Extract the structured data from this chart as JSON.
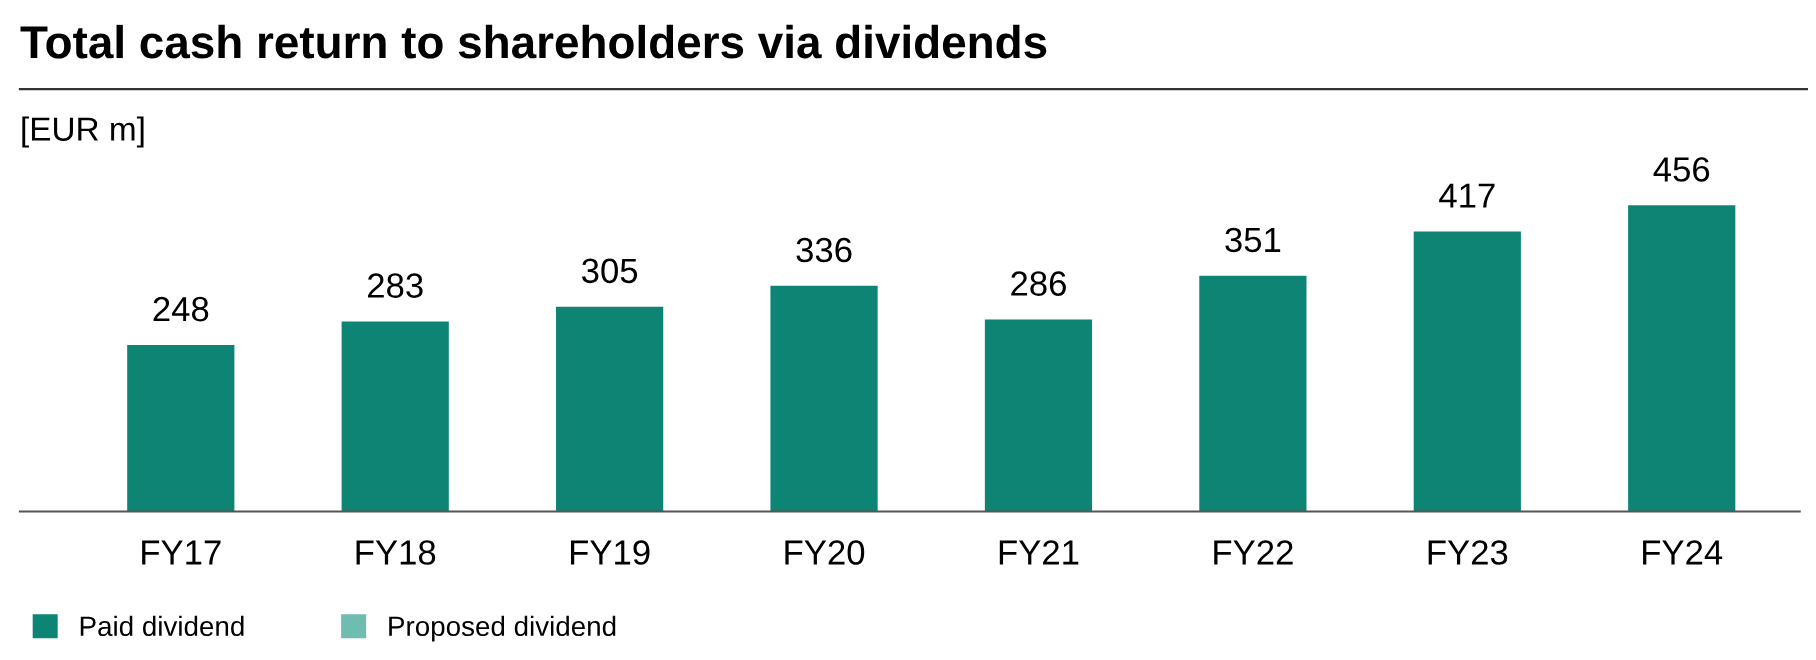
{
  "chart_data": {
    "type": "bar",
    "title": "Total cash return to shareholders via dividends",
    "ylabel": "[EUR m]",
    "categories": [
      "FY17",
      "FY18",
      "FY19",
      "FY20",
      "FY21",
      "FY22",
      "FY23",
      "FY24"
    ],
    "series": [
      {
        "name": "Paid dividend",
        "color": "#0e8474",
        "values": [
          248,
          283,
          305,
          336,
          286,
          351,
          417,
          456
        ]
      },
      {
        "name": "Proposed dividend",
        "color": "#6fbcb1",
        "values": [
          null,
          null,
          null,
          null,
          null,
          null,
          null,
          null
        ]
      }
    ],
    "data_labels": true,
    "legend": "bottom left",
    "grid": false
  }
}
